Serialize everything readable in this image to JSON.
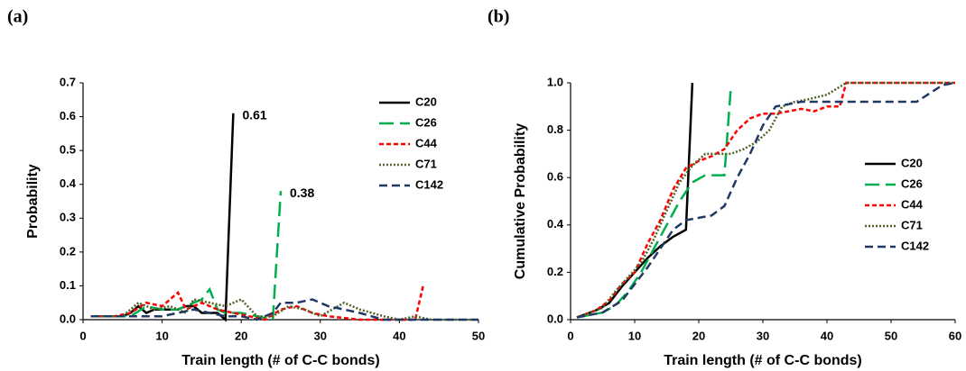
{
  "chart_data": [
    {
      "type": "line",
      "panel_label": "(a)",
      "xlabel": "Train length (# of C-C bonds)",
      "ylabel": "Probability",
      "xlim": [
        0,
        50
      ],
      "xticks": [
        0,
        10,
        20,
        30,
        40,
        50
      ],
      "ylim": [
        0,
        0.7
      ],
      "yticks": [
        {
          "value": 0,
          "label": "0.0"
        },
        {
          "value": 0.1,
          "label": "0.1"
        },
        {
          "value": 0.2,
          "label": "0.2"
        },
        {
          "value": 0.3,
          "label": "0.3"
        },
        {
          "value": 0.4,
          "label": "0.4"
        },
        {
          "value": 0.5,
          "label": "0.5"
        },
        {
          "value": 0.6,
          "label": "0.6"
        },
        {
          "value": 0.7,
          "label": "0.7"
        }
      ],
      "legend": "upper right",
      "annotations": [
        "0.61",
        "0.38"
      ],
      "series": [
        {
          "name": "C20",
          "color": "#000000",
          "dash": "solid",
          "x": [
            1,
            3,
            5,
            6,
            7,
            8,
            9,
            10,
            11,
            12,
            13,
            14,
            15,
            16,
            17,
            18,
            19
          ],
          "values": [
            0.01,
            0.01,
            0.01,
            0.02,
            0.04,
            0.02,
            0.03,
            0.03,
            0.03,
            0.03,
            0.04,
            0.04,
            0.02,
            0.02,
            0.02,
            0,
            0.61
          ]
        },
        {
          "name": "C26",
          "color": "#00b050",
          "dash": "long",
          "x": [
            1,
            4,
            6,
            8,
            10,
            12,
            14,
            15,
            16,
            17,
            18,
            20,
            22,
            24,
            25
          ],
          "values": [
            0.01,
            0.01,
            0.01,
            0.04,
            0.03,
            0.03,
            0.05,
            0.06,
            0.09,
            0.03,
            0.02,
            0.02,
            0.01,
            0,
            0.38
          ]
        },
        {
          "name": "C44",
          "color": "#ff0000",
          "dash": "short",
          "x": [
            1,
            4,
            6,
            8,
            10,
            12,
            13,
            15,
            17,
            19,
            21,
            23,
            25,
            27,
            29,
            31,
            35,
            38,
            40,
            42,
            43
          ],
          "values": [
            0.01,
            0.01,
            0.02,
            0.05,
            0.04,
            0.08,
            0.03,
            0.05,
            0.03,
            0.02,
            0.01,
            0,
            0.03,
            0.04,
            0.02,
            0.01,
            0,
            0,
            0,
            0,
            0.1
          ]
        },
        {
          "name": "C71",
          "color": "#4f6228",
          "dash": "dot",
          "x": [
            1,
            5,
            7,
            9,
            11,
            13,
            14,
            16,
            18,
            20,
            22,
            24,
            26,
            28,
            30,
            33,
            35,
            38,
            40,
            42,
            44,
            46,
            48,
            50
          ],
          "values": [
            0.01,
            0.01,
            0.05,
            0.03,
            0.04,
            0.02,
            0.06,
            0.05,
            0.04,
            0.06,
            0.01,
            0.01,
            0.04,
            0.03,
            0.01,
            0.05,
            0.03,
            0.01,
            0,
            0.01,
            0,
            0,
            0,
            0
          ]
        },
        {
          "name": "C142",
          "color": "#1f3864",
          "dash": "medium",
          "x": [
            1,
            5,
            8,
            10,
            12,
            14,
            16,
            18,
            20,
            22,
            24,
            25,
            27,
            29,
            31,
            33,
            35,
            38,
            40,
            45,
            50
          ],
          "values": [
            0.01,
            0.01,
            0.01,
            0.01,
            0.02,
            0.03,
            0.02,
            0.01,
            0.01,
            0,
            0.02,
            0.05,
            0.05,
            0.06,
            0.04,
            0.03,
            0.02,
            0,
            0,
            0,
            0
          ]
        }
      ]
    },
    {
      "type": "line",
      "panel_label": "(b)",
      "xlabel": "Train length (# of C-C bonds)",
      "ylabel": "Cumulative Probability",
      "xlim": [
        0,
        60
      ],
      "xticks": [
        0,
        10,
        20,
        30,
        40,
        50,
        60
      ],
      "ylim": [
        0,
        1
      ],
      "yticks": [
        {
          "value": 0,
          "label": "0.0"
        },
        {
          "value": 0.2,
          "label": "0.2"
        },
        {
          "value": 0.4,
          "label": "0.4"
        },
        {
          "value": 0.6,
          "label": "0.6"
        },
        {
          "value": 0.8,
          "label": "0.8"
        },
        {
          "value": 1,
          "label": "1.0"
        }
      ],
      "legend": "right",
      "series": [
        {
          "name": "C20",
          "color": "#000000",
          "dash": "solid",
          "x": [
            1,
            4,
            6,
            8,
            10,
            12,
            14,
            16,
            18,
            19
          ],
          "values": [
            0.01,
            0.04,
            0.07,
            0.14,
            0.2,
            0.26,
            0.31,
            0.35,
            0.38,
            1.0
          ]
        },
        {
          "name": "C26",
          "color": "#00b050",
          "dash": "long",
          "x": [
            1,
            5,
            7,
            9,
            11,
            13,
            15,
            17,
            19,
            21,
            23,
            24,
            25
          ],
          "values": [
            0.01,
            0.03,
            0.06,
            0.12,
            0.2,
            0.3,
            0.4,
            0.5,
            0.58,
            0.61,
            0.61,
            0.61,
            0.98
          ]
        },
        {
          "name": "C44",
          "color": "#ff0000",
          "dash": "short",
          "x": [
            1,
            4,
            6,
            8,
            10,
            12,
            14,
            16,
            18,
            20,
            22,
            24,
            26,
            28,
            30,
            32,
            34,
            36,
            38,
            40,
            41,
            42,
            43,
            60
          ],
          "values": [
            0.01,
            0.04,
            0.08,
            0.15,
            0.2,
            0.32,
            0.42,
            0.55,
            0.64,
            0.67,
            0.69,
            0.72,
            0.8,
            0.85,
            0.87,
            0.87,
            0.88,
            0.89,
            0.88,
            0.9,
            0.9,
            0.9,
            1.0,
            1.0
          ]
        },
        {
          "name": "C71",
          "color": "#4f6228",
          "dash": "dot",
          "x": [
            1,
            5,
            7,
            9,
            11,
            13,
            15,
            17,
            19,
            21,
            23,
            25,
            27,
            29,
            31,
            33,
            35,
            37,
            40,
            43,
            60
          ],
          "values": [
            0.01,
            0.05,
            0.12,
            0.18,
            0.24,
            0.34,
            0.46,
            0.58,
            0.65,
            0.7,
            0.7,
            0.7,
            0.72,
            0.75,
            0.8,
            0.9,
            0.92,
            0.93,
            0.95,
            1.0,
            1.0
          ]
        },
        {
          "name": "C142",
          "color": "#1f3864",
          "dash": "medium",
          "x": [
            1,
            5,
            8,
            10,
            12,
            14,
            16,
            18,
            20,
            22,
            24,
            26,
            28,
            30,
            32,
            34,
            36,
            40,
            45,
            50,
            54,
            58,
            60
          ],
          "values": [
            0.01,
            0.03,
            0.08,
            0.15,
            0.22,
            0.3,
            0.38,
            0.42,
            0.43,
            0.44,
            0.48,
            0.6,
            0.7,
            0.82,
            0.9,
            0.91,
            0.92,
            0.92,
            0.92,
            0.92,
            0.92,
            0.99,
            1.0
          ]
        }
      ]
    }
  ]
}
